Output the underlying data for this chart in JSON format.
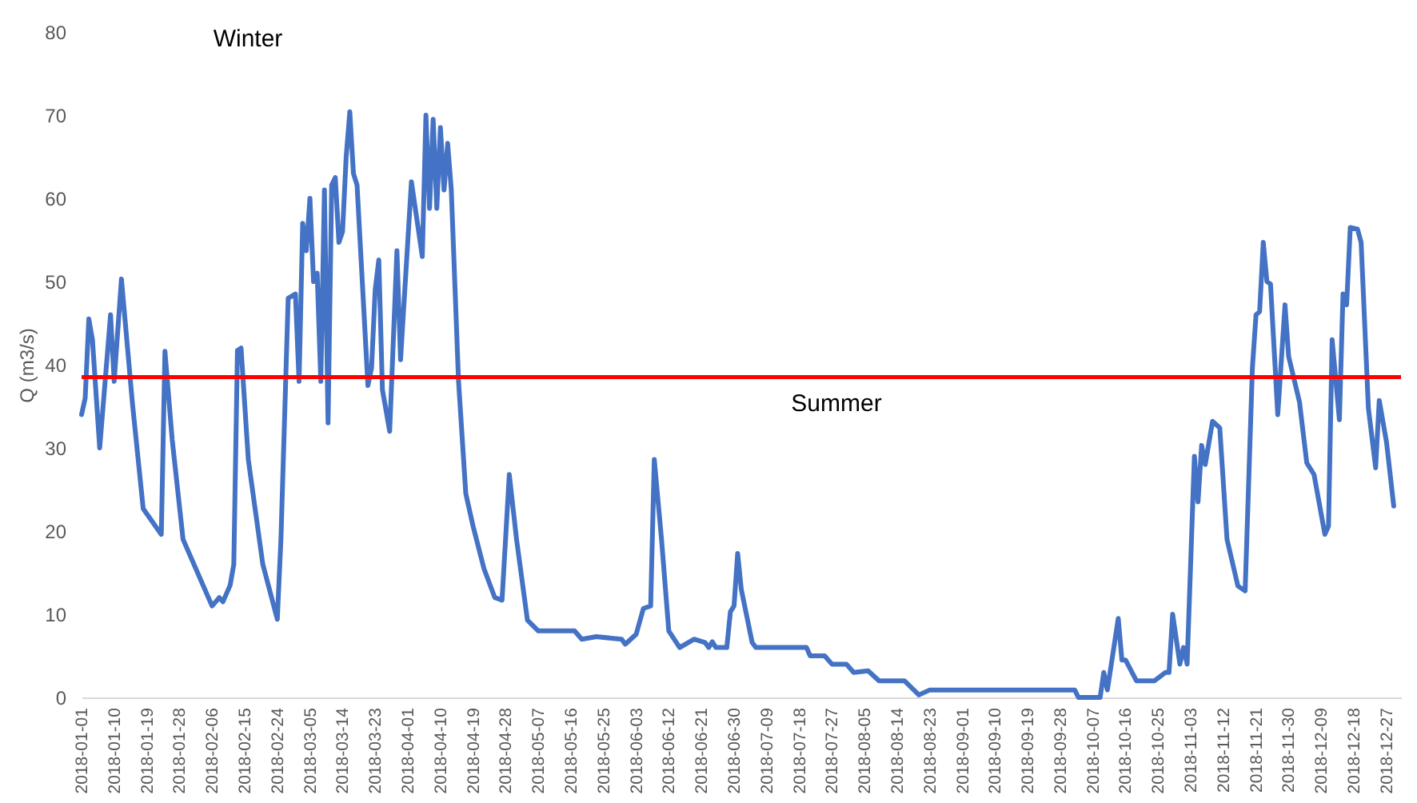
{
  "chart_data": {
    "type": "line",
    "ylabel": "Q (m3/s)",
    "x": [
      "2018-01-01",
      "2018-01-02",
      "2018-01-03",
      "2018-01-04",
      "2018-01-06",
      "2018-01-09",
      "2018-01-10",
      "2018-01-12",
      "2018-01-15",
      "2018-01-18",
      "2018-01-23",
      "2018-01-24",
      "2018-01-26",
      "2018-01-29",
      "2018-02-02",
      "2018-02-06",
      "2018-02-08",
      "2018-02-09",
      "2018-02-11",
      "2018-02-12",
      "2018-02-13",
      "2018-02-14",
      "2018-02-16",
      "2018-02-20",
      "2018-02-24",
      "2018-02-25",
      "2018-02-27",
      "2018-03-01",
      "2018-03-02",
      "2018-03-03",
      "2018-03-04",
      "2018-03-05",
      "2018-03-06",
      "2018-03-07",
      "2018-03-08",
      "2018-03-09",
      "2018-03-10",
      "2018-03-11",
      "2018-03-12",
      "2018-03-13",
      "2018-03-14",
      "2018-03-15",
      "2018-03-16",
      "2018-03-17",
      "2018-03-18",
      "2018-03-21",
      "2018-03-22",
      "2018-03-23",
      "2018-03-24",
      "2018-03-25",
      "2018-03-27",
      "2018-03-29",
      "2018-03-30",
      "2018-04-02",
      "2018-04-05",
      "2018-04-06",
      "2018-04-07",
      "2018-04-08",
      "2018-04-09",
      "2018-04-10",
      "2018-04-11",
      "2018-04-12",
      "2018-04-13",
      "2018-04-15",
      "2018-04-17",
      "2018-04-19",
      "2018-04-22",
      "2018-04-25",
      "2018-04-27",
      "2018-04-29",
      "2018-05-01",
      "2018-05-04",
      "2018-05-07",
      "2018-05-17",
      "2018-05-19",
      "2018-05-23",
      "2018-05-30",
      "2018-05-31",
      "2018-06-03",
      "2018-06-05",
      "2018-06-07",
      "2018-06-08",
      "2018-06-10",
      "2018-06-12",
      "2018-06-15",
      "2018-06-19",
      "2018-06-22",
      "2018-06-23",
      "2018-06-24",
      "2018-06-25",
      "2018-06-28",
      "2018-06-29",
      "2018-06-30",
      "2018-07-01",
      "2018-07-02",
      "2018-07-05",
      "2018-07-06",
      "2018-07-20",
      "2018-07-21",
      "2018-07-25",
      "2018-07-27",
      "2018-07-31",
      "2018-08-02",
      "2018-08-06",
      "2018-08-09",
      "2018-08-16",
      "2018-08-20",
      "2018-08-23",
      "2018-10-02",
      "2018-10-03",
      "2018-10-09",
      "2018-10-10",
      "2018-10-11",
      "2018-10-14",
      "2018-10-15",
      "2018-10-16",
      "2018-10-19",
      "2018-10-24",
      "2018-10-27",
      "2018-10-28",
      "2018-10-29",
      "2018-10-31",
      "2018-11-01",
      "2018-11-02",
      "2018-11-04",
      "2018-11-05",
      "2018-11-06",
      "2018-11-07",
      "2018-11-09",
      "2018-11-11",
      "2018-11-13",
      "2018-11-16",
      "2018-11-18",
      "2018-11-20",
      "2018-11-21",
      "2018-11-22",
      "2018-11-23",
      "2018-11-24",
      "2018-11-25",
      "2018-11-27",
      "2018-11-29",
      "2018-11-30",
      "2018-12-03",
      "2018-12-05",
      "2018-12-07",
      "2018-12-10",
      "2018-12-11",
      "2018-12-12",
      "2018-12-14",
      "2018-12-15",
      "2018-12-16",
      "2018-12-17",
      "2018-12-19",
      "2018-12-20",
      "2018-12-22",
      "2018-12-24",
      "2018-12-25",
      "2018-12-27",
      "2018-12-29"
    ],
    "series": [
      {
        "color": "#4472c4",
        "values": [
          34,
          36,
          45.5,
          43,
          30,
          46,
          38,
          50.3,
          35.5,
          22.7,
          19.6,
          41.6,
          31,
          19,
          15,
          11,
          12,
          11.5,
          13.5,
          16,
          41.7,
          42,
          28.6,
          16,
          9.4,
          19,
          48,
          48.5,
          38,
          57,
          53.7,
          60,
          50,
          51,
          38,
          61,
          33,
          61.6,
          62.5,
          54.7,
          56,
          65,
          70.4,
          63,
          61.6,
          37.5,
          39.6,
          49,
          52.6,
          37,
          32,
          53.7,
          40.6,
          62,
          53,
          70,
          58.8,
          69.5,
          58.8,
          68.5,
          61,
          66.6,
          61,
          38,
          24.5,
          20.6,
          15.5,
          12,
          11.7,
          26.8,
          19,
          9.3,
          8,
          8,
          7,
          7.3,
          7,
          6.4,
          7.6,
          10.7,
          11,
          28.6,
          19,
          8,
          6,
          7,
          6.6,
          6,
          6.7,
          6,
          6,
          10.3,
          11,
          17.3,
          13,
          6.6,
          6,
          6,
          5,
          5,
          4,
          4,
          3,
          3.2,
          2,
          2,
          0.3,
          0.9,
          0.9,
          0,
          0,
          3,
          0.9,
          9.5,
          4.5,
          4.5,
          2,
          2,
          3,
          3,
          10,
          4,
          6,
          4,
          29,
          23.5,
          30.3,
          28,
          33.2,
          32.4,
          19,
          13.4,
          12.8,
          39.6,
          46,
          46.4,
          54.7,
          50,
          49.7,
          34,
          47.2,
          41,
          35.5,
          28.2,
          26.8,
          19.6,
          20.6,
          43,
          33.4,
          48.5,
          47.2,
          56.5,
          56.3,
          54.7,
          34.8,
          27.6,
          35.7,
          30.7,
          23
        ]
      }
    ],
    "xlim": [
      "2018-01-01",
      "2018-12-31"
    ],
    "xticks": [
      "2018-01-01",
      "2018-01-10",
      "2018-01-19",
      "2018-01-28",
      "2018-02-06",
      "2018-02-15",
      "2018-02-24",
      "2018-03-05",
      "2018-03-14",
      "2018-03-23",
      "2018-04-01",
      "2018-04-10",
      "2018-04-19",
      "2018-04-28",
      "2018-05-07",
      "2018-05-16",
      "2018-05-25",
      "2018-06-03",
      "2018-06-12",
      "2018-06-21",
      "2018-06-30",
      "2018-07-09",
      "2018-07-18",
      "2018-07-27",
      "2018-08-05",
      "2018-08-14",
      "2018-08-23",
      "2018-09-01",
      "2018-09-10",
      "2018-09-19",
      "2018-09-28",
      "2018-10-07",
      "2018-10-16",
      "2018-10-25",
      "2018-11-03",
      "2018-11-12",
      "2018-11-21",
      "2018-11-30",
      "2018-12-09",
      "2018-12-18",
      "2018-12-27"
    ],
    "ylim": [
      0,
      80
    ],
    "yticks": [
      0,
      10,
      20,
      30,
      40,
      50,
      60,
      70,
      80
    ],
    "grid": false,
    "marker": "none",
    "line_style": "solid",
    "ref_lines": [
      {
        "axis": "y",
        "value": 38.5,
        "color": "#ff0000"
      }
    ],
    "annotations": [
      "Winter",
      "Summer"
    ]
  }
}
